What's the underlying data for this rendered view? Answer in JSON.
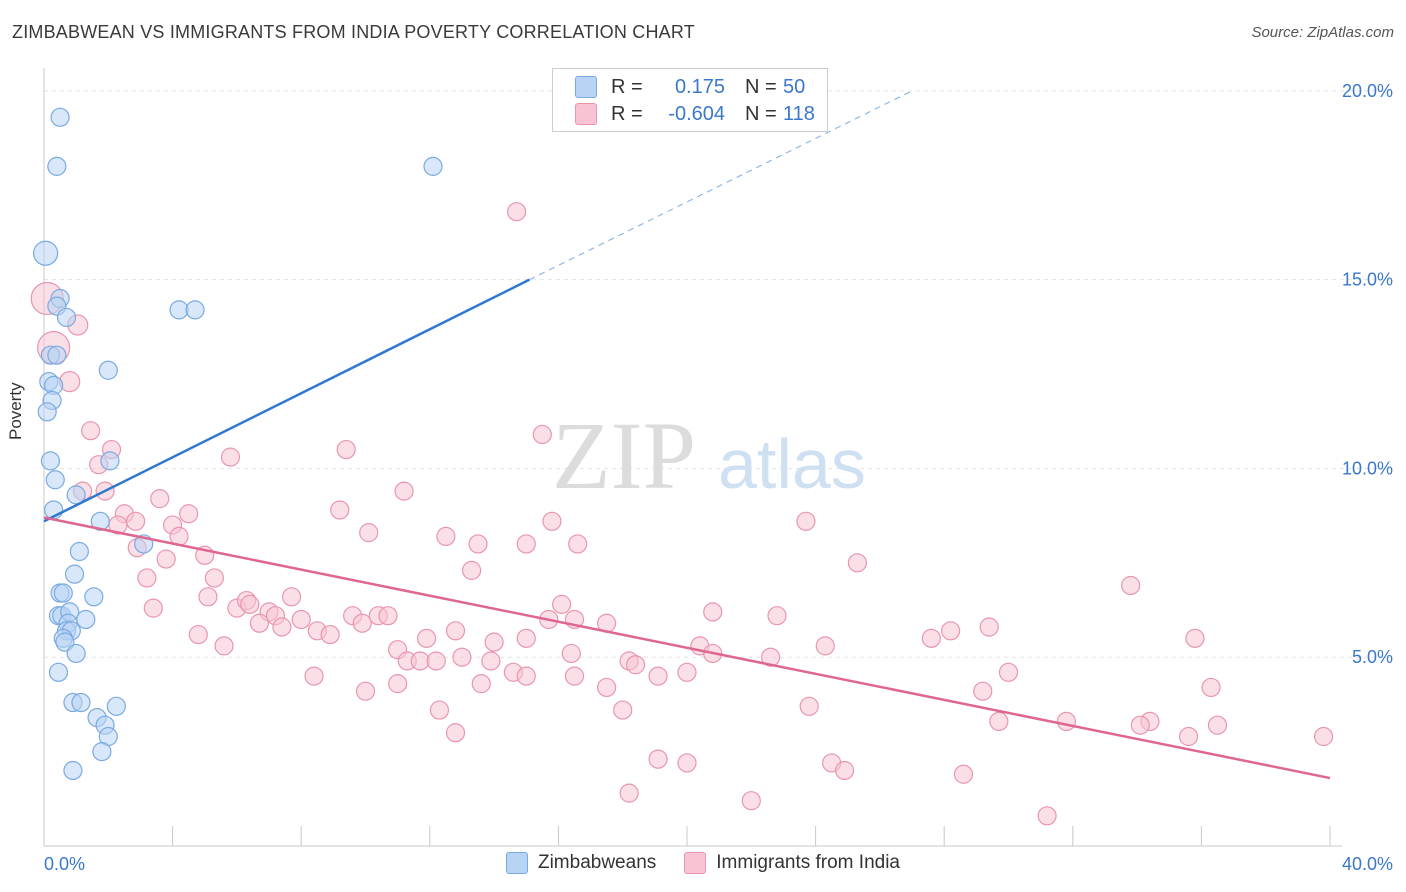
{
  "header": {
    "title": "ZIMBABWEAN VS IMMIGRANTS FROM INDIA POVERTY CORRELATION CHART",
    "source": "Source: ZipAtlas.com"
  },
  "watermark": {
    "zip": "ZIP",
    "atlas": "atlas"
  },
  "legend": {
    "rows": [
      {
        "r_label": "R =",
        "r_value": "0.175",
        "n_label": "N =",
        "n_value": "50",
        "fill": "#b8d4f4",
        "stroke": "#7aaae0"
      },
      {
        "r_label": "R =",
        "r_value": "-0.604",
        "n_label": "N =",
        "n_value": "118",
        "fill": "#f8c4d4",
        "stroke": "#e896b0"
      }
    ]
  },
  "bottom_legend": [
    "Zimbabweans",
    "Immigrants from India"
  ],
  "chart_data": {
    "type": "scatter",
    "xlabel": "",
    "ylabel": "Poverty",
    "xlim": [
      0,
      40
    ],
    "ylim": [
      0,
      20.5
    ],
    "x_tick_labels": [
      {
        "value": 0,
        "label": "0.0%"
      },
      {
        "value": 40,
        "label": "40.0%"
      }
    ],
    "y_tick_labels": [
      {
        "value": 5,
        "label": "5.0%"
      },
      {
        "value": 10,
        "label": "10.0%"
      },
      {
        "value": 15,
        "label": "15.0%"
      },
      {
        "value": 20,
        "label": "20.0%"
      }
    ],
    "y_gridlines": [
      5,
      10,
      15,
      20
    ],
    "series": [
      {
        "name": "Zimbabweans",
        "color": "#7aaae0",
        "fill": "#b8d4f4",
        "line_color": "#2f78cf",
        "trend": {
          "x1": 0,
          "y1": 8.6,
          "x2": 15.1,
          "y2": 15.0,
          "dash_x2": 27.0,
          "dash_y2": 20.0
        },
        "points": [
          [
            0.5,
            19.3,
            9
          ],
          [
            0.4,
            18.0,
            9
          ],
          [
            0.05,
            15.7,
            12
          ],
          [
            0.5,
            14.5,
            9
          ],
          [
            0.4,
            14.3,
            9
          ],
          [
            0.7,
            14.0,
            9
          ],
          [
            0.2,
            13.0,
            9
          ],
          [
            0.4,
            13.0,
            9
          ],
          [
            0.15,
            12.3,
            9
          ],
          [
            0.3,
            12.2,
            9
          ],
          [
            0.25,
            11.8,
            9
          ],
          [
            0.1,
            11.5,
            9
          ],
          [
            2.0,
            12.6,
            9
          ],
          [
            4.2,
            14.2,
            9
          ],
          [
            4.7,
            14.2,
            9
          ],
          [
            12.1,
            18.0,
            9
          ],
          [
            0.2,
            10.2,
            9
          ],
          [
            2.05,
            10.2,
            9
          ],
          [
            0.35,
            9.7,
            9
          ],
          [
            1.0,
            9.3,
            9
          ],
          [
            0.3,
            8.9,
            9
          ],
          [
            1.75,
            8.6,
            9
          ],
          [
            3.1,
            8.0,
            9
          ],
          [
            1.1,
            7.8,
            9
          ],
          [
            0.95,
            7.2,
            9
          ],
          [
            0.5,
            6.7,
            9
          ],
          [
            0.6,
            6.7,
            9
          ],
          [
            1.55,
            6.6,
            9
          ],
          [
            0.45,
            6.1,
            9
          ],
          [
            0.55,
            6.1,
            9
          ],
          [
            0.8,
            6.2,
            9
          ],
          [
            1.3,
            6.0,
            9
          ],
          [
            0.75,
            5.9,
            9
          ],
          [
            0.7,
            5.7,
            9
          ],
          [
            0.85,
            5.7,
            9
          ],
          [
            0.6,
            5.5,
            9
          ],
          [
            0.65,
            5.4,
            9
          ],
          [
            1.0,
            5.1,
            9
          ],
          [
            0.45,
            4.6,
            9
          ],
          [
            0.9,
            3.8,
            9
          ],
          [
            1.15,
            3.8,
            9
          ],
          [
            2.25,
            3.7,
            9
          ],
          [
            1.65,
            3.4,
            9
          ],
          [
            1.9,
            3.2,
            9
          ],
          [
            2.0,
            2.9,
            9
          ],
          [
            1.8,
            2.5,
            9
          ],
          [
            0.9,
            2.0,
            9
          ]
        ]
      },
      {
        "name": "Immigrants from India",
        "color": "#e896b0",
        "fill": "#f8c4d4",
        "line_color": "#de6690",
        "trend": {
          "x1": 0,
          "y1": 8.7,
          "x2": 40,
          "y2": 1.8
        },
        "points": [
          [
            0.1,
            14.5,
            16
          ],
          [
            0.3,
            13.2,
            16
          ],
          [
            1.05,
            13.8,
            10
          ],
          [
            0.8,
            12.3,
            10
          ],
          [
            1.45,
            11.0,
            9
          ],
          [
            2.1,
            10.5,
            9
          ],
          [
            1.7,
            10.1,
            9
          ],
          [
            5.8,
            10.3,
            9
          ],
          [
            9.4,
            10.5,
            9
          ],
          [
            15.5,
            10.9,
            9
          ],
          [
            14.7,
            16.8,
            9
          ],
          [
            1.2,
            9.4,
            9
          ],
          [
            1.9,
            9.4,
            9
          ],
          [
            3.6,
            9.2,
            9
          ],
          [
            11.2,
            9.4,
            9
          ],
          [
            2.5,
            8.8,
            9
          ],
          [
            4.5,
            8.8,
            9
          ],
          [
            9.2,
            8.9,
            9
          ],
          [
            2.3,
            8.5,
            9
          ],
          [
            2.85,
            8.6,
            9
          ],
          [
            4.0,
            8.5,
            9
          ],
          [
            4.2,
            8.2,
            9
          ],
          [
            10.1,
            8.3,
            9
          ],
          [
            12.5,
            8.2,
            9
          ],
          [
            15.8,
            8.6,
            9
          ],
          [
            23.7,
            8.6,
            9
          ],
          [
            2.9,
            7.9,
            9
          ],
          [
            3.8,
            7.6,
            9
          ],
          [
            5.0,
            7.7,
            9
          ],
          [
            13.5,
            8.0,
            9
          ],
          [
            15.0,
            8.0,
            9
          ],
          [
            16.6,
            8.0,
            9
          ],
          [
            3.2,
            7.1,
            9
          ],
          [
            5.3,
            7.1,
            9
          ],
          [
            13.3,
            7.3,
            9
          ],
          [
            25.3,
            7.5,
            9
          ],
          [
            33.8,
            6.9,
            9
          ],
          [
            5.1,
            6.6,
            9
          ],
          [
            7.7,
            6.6,
            9
          ],
          [
            3.4,
            6.3,
            9
          ],
          [
            6.0,
            6.3,
            9
          ],
          [
            6.3,
            6.5,
            9
          ],
          [
            6.4,
            6.4,
            9
          ],
          [
            7.0,
            6.2,
            9
          ],
          [
            7.2,
            6.1,
            9
          ],
          [
            16.1,
            6.4,
            9
          ],
          [
            20.8,
            6.2,
            9
          ],
          [
            22.8,
            6.1,
            9
          ],
          [
            9.6,
            6.1,
            9
          ],
          [
            10.4,
            6.1,
            9
          ],
          [
            10.7,
            6.1,
            9
          ],
          [
            6.7,
            5.9,
            9
          ],
          [
            7.4,
            5.8,
            9
          ],
          [
            8.0,
            6.0,
            9
          ],
          [
            8.5,
            5.7,
            9
          ],
          [
            8.9,
            5.6,
            9
          ],
          [
            9.9,
            5.9,
            9
          ],
          [
            12.8,
            5.7,
            9
          ],
          [
            15.7,
            6.0,
            9
          ],
          [
            16.5,
            6.0,
            9
          ],
          [
            17.5,
            5.9,
            9
          ],
          [
            4.8,
            5.6,
            9
          ],
          [
            5.6,
            5.3,
            9
          ],
          [
            11.9,
            5.5,
            9
          ],
          [
            15.0,
            5.5,
            9
          ],
          [
            27.6,
            5.5,
            9
          ],
          [
            28.2,
            5.7,
            9
          ],
          [
            29.4,
            5.8,
            9
          ],
          [
            35.8,
            5.5,
            9
          ],
          [
            11.0,
            5.2,
            9
          ],
          [
            14.0,
            5.4,
            9
          ],
          [
            16.4,
            5.1,
            9
          ],
          [
            20.4,
            5.3,
            9
          ],
          [
            20.8,
            5.1,
            9
          ],
          [
            24.3,
            5.3,
            9
          ],
          [
            11.3,
            4.9,
            9
          ],
          [
            11.7,
            4.9,
            9
          ],
          [
            12.2,
            4.9,
            9
          ],
          [
            13.0,
            5.0,
            9
          ],
          [
            13.9,
            4.9,
            9
          ],
          [
            18.2,
            4.9,
            9
          ],
          [
            18.4,
            4.8,
            9
          ],
          [
            22.6,
            5.0,
            9
          ],
          [
            14.6,
            4.6,
            9
          ],
          [
            15.0,
            4.5,
            9
          ],
          [
            16.5,
            4.5,
            9
          ],
          [
            19.1,
            4.5,
            9
          ],
          [
            20.0,
            4.6,
            9
          ],
          [
            8.4,
            4.5,
            9
          ],
          [
            30.0,
            4.6,
            9
          ],
          [
            10.0,
            4.1,
            9
          ],
          [
            11.0,
            4.3,
            9
          ],
          [
            13.6,
            4.3,
            9
          ],
          [
            17.5,
            4.2,
            9
          ],
          [
            29.2,
            4.1,
            9
          ],
          [
            36.3,
            4.2,
            9
          ],
          [
            12.3,
            3.6,
            9
          ],
          [
            18.0,
            3.6,
            9
          ],
          [
            23.8,
            3.7,
            9
          ],
          [
            12.8,
            3.0,
            9
          ],
          [
            29.7,
            3.3,
            9
          ],
          [
            31.8,
            3.3,
            9
          ],
          [
            34.4,
            3.3,
            9
          ],
          [
            34.1,
            3.2,
            9
          ],
          [
            36.5,
            3.2,
            9
          ],
          [
            39.8,
            2.9,
            9
          ],
          [
            35.6,
            2.9,
            9
          ],
          [
            19.1,
            2.3,
            9
          ],
          [
            20.0,
            2.2,
            9
          ],
          [
            24.5,
            2.2,
            9
          ],
          [
            24.9,
            2.0,
            9
          ],
          [
            28.6,
            1.9,
            9
          ],
          [
            18.2,
            1.4,
            9
          ],
          [
            22.0,
            1.2,
            9
          ],
          [
            31.2,
            0.8,
            9
          ]
        ]
      }
    ]
  }
}
